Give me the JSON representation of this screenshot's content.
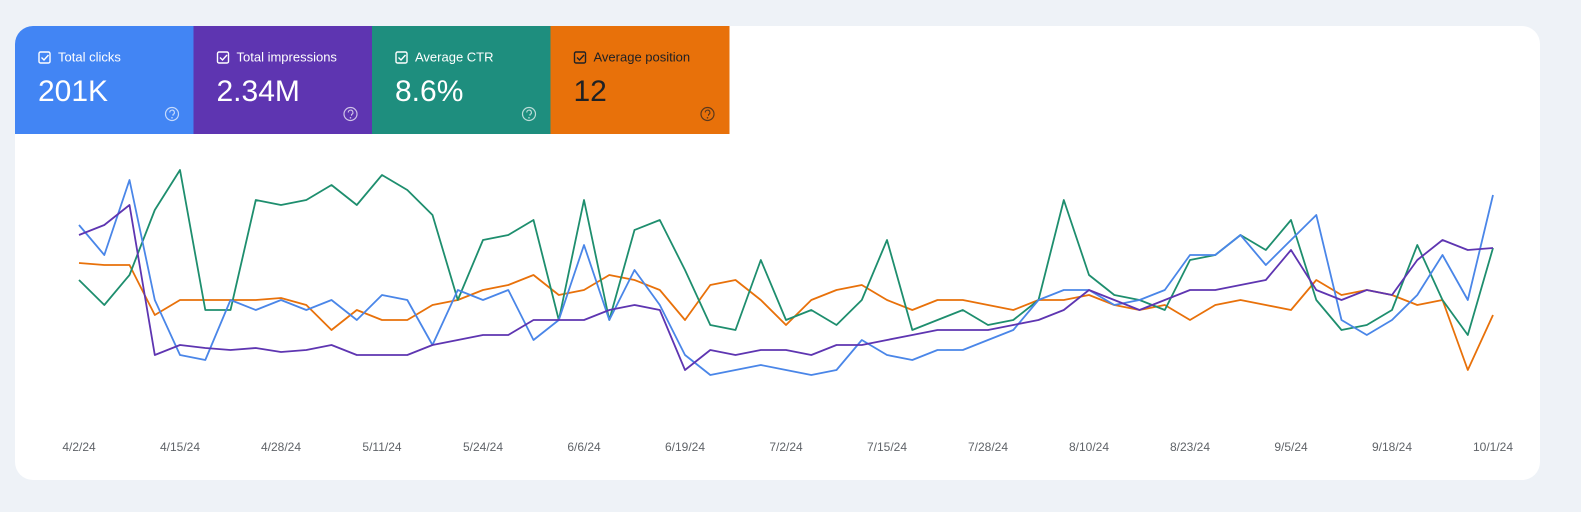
{
  "chart_data": {
    "type": "line",
    "categories": [
      "4/2/24",
      null,
      null,
      null,
      "4/15/24",
      null,
      null,
      null,
      "4/28/24",
      null,
      null,
      null,
      "5/11/24",
      null,
      null,
      null,
      "5/24/24",
      null,
      null,
      null,
      "6/6/24",
      null,
      null,
      null,
      "6/19/24",
      null,
      null,
      null,
      "7/2/24",
      null,
      null,
      null,
      "7/15/24",
      null,
      null,
      null,
      "7/28/24",
      null,
      null,
      null,
      "8/10/24",
      null,
      null,
      null,
      "8/23/24",
      null,
      null,
      null,
      "9/5/24",
      null,
      null,
      null,
      "9/18/24",
      null,
      null,
      null,
      "10/1/24"
    ],
    "ylim": [
      0,
      270
    ],
    "series": [
      {
        "name": "Total clicks",
        "total": "201K",
        "color": "#4a86e8",
        "tile_color": "#4285f4",
        "values": [
          195,
          165,
          240,
          120,
          65,
          60,
          120,
          110,
          120,
          110,
          120,
          100,
          125,
          120,
          75,
          130,
          120,
          130,
          80,
          100,
          175,
          100,
          150,
          115,
          65,
          45,
          50,
          55,
          50,
          45,
          50,
          80,
          65,
          60,
          70,
          70,
          80,
          90,
          120,
          130,
          130,
          115,
          120,
          130,
          165,
          165,
          185,
          155,
          180,
          205,
          100,
          85,
          100,
          125,
          165,
          120,
          225
        ]
      },
      {
        "name": "Total impressions",
        "total": "2.34M",
        "color": "#5e35b1",
        "tile_color": "#5e35b1",
        "values": [
          185,
          195,
          215,
          65,
          75,
          72,
          70,
          72,
          68,
          70,
          75,
          65,
          65,
          65,
          75,
          80,
          85,
          85,
          100,
          100,
          100,
          110,
          115,
          110,
          50,
          70,
          65,
          70,
          70,
          65,
          75,
          75,
          80,
          85,
          90,
          90,
          90,
          95,
          100,
          110,
          130,
          120,
          110,
          120,
          130,
          130,
          135,
          140,
          170,
          130,
          120,
          130,
          125,
          160,
          180,
          170,
          172
        ]
      },
      {
        "name": "Average CTR",
        "total": "8.6%",
        "color": "#1e8e6e",
        "tile_color": "#1e8e7e",
        "values": [
          140,
          115,
          145,
          210,
          250,
          110,
          110,
          220,
          215,
          220,
          235,
          215,
          245,
          230,
          205,
          120,
          180,
          185,
          200,
          100,
          220,
          100,
          190,
          200,
          150,
          95,
          90,
          160,
          100,
          110,
          95,
          120,
          180,
          90,
          100,
          110,
          95,
          100,
          120,
          220,
          145,
          125,
          120,
          110,
          160,
          165,
          185,
          170,
          200,
          120,
          90,
          95,
          110,
          175,
          120,
          85,
          172
        ]
      },
      {
        "name": "Average position",
        "total": "12",
        "color": "#e8710a",
        "tile_color": "#e8710a",
        "values": [
          157,
          155,
          155,
          105,
          120,
          120,
          120,
          120,
          122,
          115,
          90,
          110,
          100,
          100,
          115,
          120,
          130,
          135,
          145,
          125,
          130,
          145,
          140,
          130,
          100,
          135,
          140,
          120,
          95,
          120,
          130,
          135,
          120,
          110,
          120,
          120,
          115,
          110,
          120,
          120,
          125,
          115,
          110,
          115,
          100,
          115,
          120,
          115,
          110,
          140,
          125,
          130,
          125,
          115,
          120,
          50,
          105
        ]
      }
    ]
  }
}
